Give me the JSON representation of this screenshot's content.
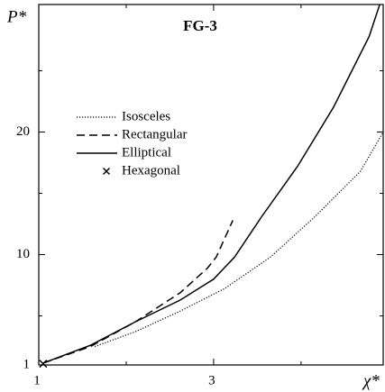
{
  "chart_data": {
    "type": "line",
    "title": "FG-3",
    "xlabel": "χ*",
    "ylabel": "P*",
    "xlim": [
      1,
      4.94
    ],
    "ylim": [
      1,
      30.4
    ],
    "xticks": [
      1,
      3
    ],
    "yticks": [
      1,
      10,
      20
    ],
    "xminorticks": [
      2,
      4
    ],
    "yminorticks": [
      5,
      15,
      25
    ],
    "legend": "upper left",
    "series": [
      {
        "name": "Isosceles",
        "color": "#000",
        "dash": "dotted",
        "x": [
          1.64,
          2.1,
          2.62,
          3.13,
          3.65,
          4.16,
          4.68,
          4.94
        ],
        "values": [
          2.5,
          3.7,
          5.4,
          7.25,
          9.8,
          13.1,
          16.8,
          20
        ]
      },
      {
        "name": "Rectangular",
        "color": "#000",
        "dash": "dashed",
        "x": [
          1.05,
          1.59,
          2.1,
          2.62,
          2.93,
          3.03,
          3.22
        ],
        "values": [
          1.15,
          2.5,
          4.5,
          6.9,
          8.9,
          9.8,
          12.8
        ]
      },
      {
        "name": "Elliptical",
        "color": "#000",
        "dash": "solid",
        "x": [
          1.05,
          1.59,
          2.1,
          2.62,
          3.0,
          3.24,
          3.55,
          3.96,
          4.37,
          4.78,
          4.9
        ],
        "values": [
          1.15,
          2.6,
          4.5,
          6.3,
          8.0,
          9.8,
          13.1,
          17.2,
          22,
          27.8,
          30.4
        ]
      },
      {
        "name": "Hexagonal",
        "color": "#000",
        "marker": "x",
        "x": [
          1.05
        ],
        "values": [
          1.1
        ]
      }
    ]
  }
}
